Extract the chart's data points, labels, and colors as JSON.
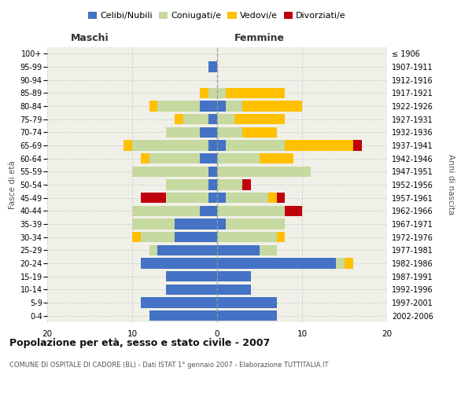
{
  "age_groups": [
    "0-4",
    "5-9",
    "10-14",
    "15-19",
    "20-24",
    "25-29",
    "30-34",
    "35-39",
    "40-44",
    "45-49",
    "50-54",
    "55-59",
    "60-64",
    "65-69",
    "70-74",
    "75-79",
    "80-84",
    "85-89",
    "90-94",
    "95-99",
    "100+"
  ],
  "birth_years": [
    "2002-2006",
    "1997-2001",
    "1992-1996",
    "1987-1991",
    "1982-1986",
    "1977-1981",
    "1972-1976",
    "1967-1971",
    "1962-1966",
    "1957-1961",
    "1952-1956",
    "1947-1951",
    "1942-1946",
    "1937-1941",
    "1932-1936",
    "1927-1931",
    "1922-1926",
    "1917-1921",
    "1912-1916",
    "1907-1911",
    "≤ 1906"
  ],
  "males": {
    "celibi": [
      8,
      9,
      6,
      6,
      9,
      7,
      5,
      5,
      2,
      1,
      1,
      1,
      2,
      1,
      2,
      1,
      2,
      0,
      0,
      1,
      0
    ],
    "coniugati": [
      0,
      0,
      0,
      0,
      0,
      1,
      4,
      5,
      8,
      5,
      5,
      9,
      6,
      9,
      4,
      3,
      5,
      1,
      0,
      0,
      0
    ],
    "vedovi": [
      0,
      0,
      0,
      0,
      0,
      0,
      1,
      0,
      0,
      0,
      0,
      0,
      1,
      1,
      0,
      1,
      1,
      1,
      0,
      0,
      0
    ],
    "divorziati": [
      0,
      0,
      0,
      0,
      0,
      0,
      0,
      0,
      0,
      3,
      0,
      0,
      0,
      0,
      0,
      0,
      0,
      0,
      0,
      0,
      0
    ]
  },
  "females": {
    "nubili": [
      7,
      7,
      4,
      4,
      14,
      5,
      0,
      1,
      0,
      1,
      0,
      0,
      0,
      1,
      0,
      0,
      1,
      0,
      0,
      0,
      0
    ],
    "coniugate": [
      0,
      0,
      0,
      0,
      1,
      2,
      7,
      7,
      8,
      5,
      3,
      11,
      5,
      7,
      3,
      2,
      2,
      1,
      0,
      0,
      0
    ],
    "vedove": [
      0,
      0,
      0,
      0,
      1,
      0,
      1,
      0,
      0,
      1,
      0,
      0,
      4,
      8,
      4,
      6,
      7,
      7,
      0,
      0,
      0
    ],
    "divorziate": [
      0,
      0,
      0,
      0,
      0,
      0,
      0,
      0,
      2,
      1,
      1,
      0,
      0,
      1,
      0,
      0,
      0,
      0,
      0,
      0,
      0
    ]
  },
  "colors": {
    "celibi": "#4472c4",
    "coniugati": "#c5d9a0",
    "vedovi": "#ffc000",
    "divorziati": "#c0000b"
  },
  "xlim": 20,
  "title": "Popolazione per età, sesso e stato civile - 2007",
  "subtitle": "COMUNE DI OSPITALE DI CADORE (BL) - Dati ISTAT 1° gennaio 2007 - Elaborazione TUTTITALIA.IT",
  "xlabel_left": "Maschi",
  "xlabel_right": "Femmine",
  "ylabel_left": "Fasce di età",
  "ylabel_right": "Anni di nascita",
  "legend_labels": [
    "Celibi/Nubili",
    "Coniugati/e",
    "Vedovi/e",
    "Divorziati/e"
  ],
  "background_color": "#ffffff",
  "plot_bg_color": "#f0f0e8",
  "grid_color": "#d0d0d0"
}
